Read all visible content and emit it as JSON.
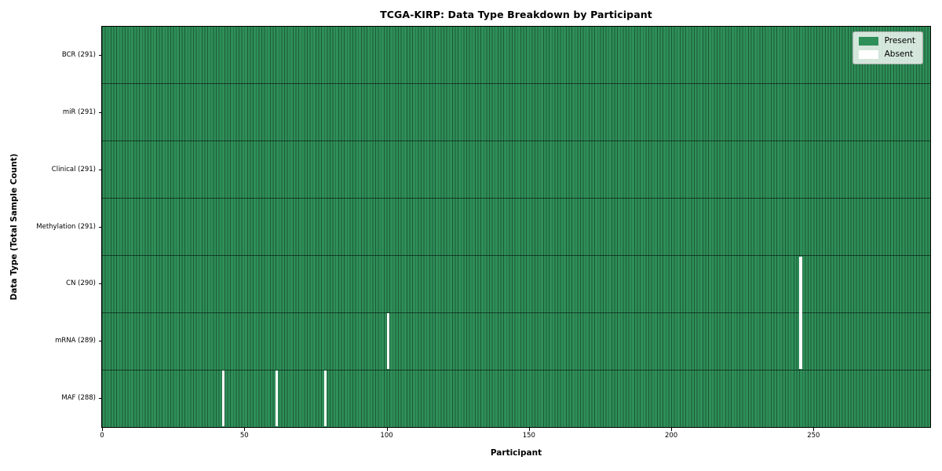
{
  "chart_data": {
    "type": "heatmap",
    "title": "TCGA-KIRP: Data Type Breakdown by Participant",
    "xlabel": "Participant",
    "ylabel": "Data Type (Total Sample Count)",
    "n_participants": 291,
    "xlim": [
      0,
      291
    ],
    "x_ticks": [
      0,
      50,
      100,
      150,
      200,
      250
    ],
    "grid": "cell-edges",
    "rows": [
      {
        "label": "BCR (291)",
        "data_type": "BCR",
        "total": 291,
        "absent_participants": []
      },
      {
        "label": "miR (291)",
        "data_type": "miR",
        "total": 291,
        "absent_participants": []
      },
      {
        "label": "Clinical (291)",
        "data_type": "Clinical",
        "total": 291,
        "absent_participants": []
      },
      {
        "label": "Methylation (291)",
        "data_type": "Methylation",
        "total": 291,
        "absent_participants": []
      },
      {
        "label": "CN (290)",
        "data_type": "CN",
        "total": 290,
        "absent_participants": [
          245
        ]
      },
      {
        "label": "mRNA (289)",
        "data_type": "mRNA",
        "total": 289,
        "absent_participants": [
          100,
          245
        ]
      },
      {
        "label": "MAF (288)",
        "data_type": "MAF",
        "total": 288,
        "absent_participants": [
          42,
          61,
          78
        ]
      }
    ],
    "legend": {
      "position": "upper right",
      "items": [
        {
          "label": "Present",
          "color": "#2e8f58"
        },
        {
          "label": "Absent",
          "color": "#ffffff"
        }
      ]
    },
    "colors": {
      "present": "#2e8f58",
      "absent": "#ffffff",
      "cell_edge": "rgba(0,0,0,0.38)",
      "row_divider": "rgba(0,0,0,0.55)",
      "spine": "#000000",
      "background": "#ffffff"
    }
  }
}
